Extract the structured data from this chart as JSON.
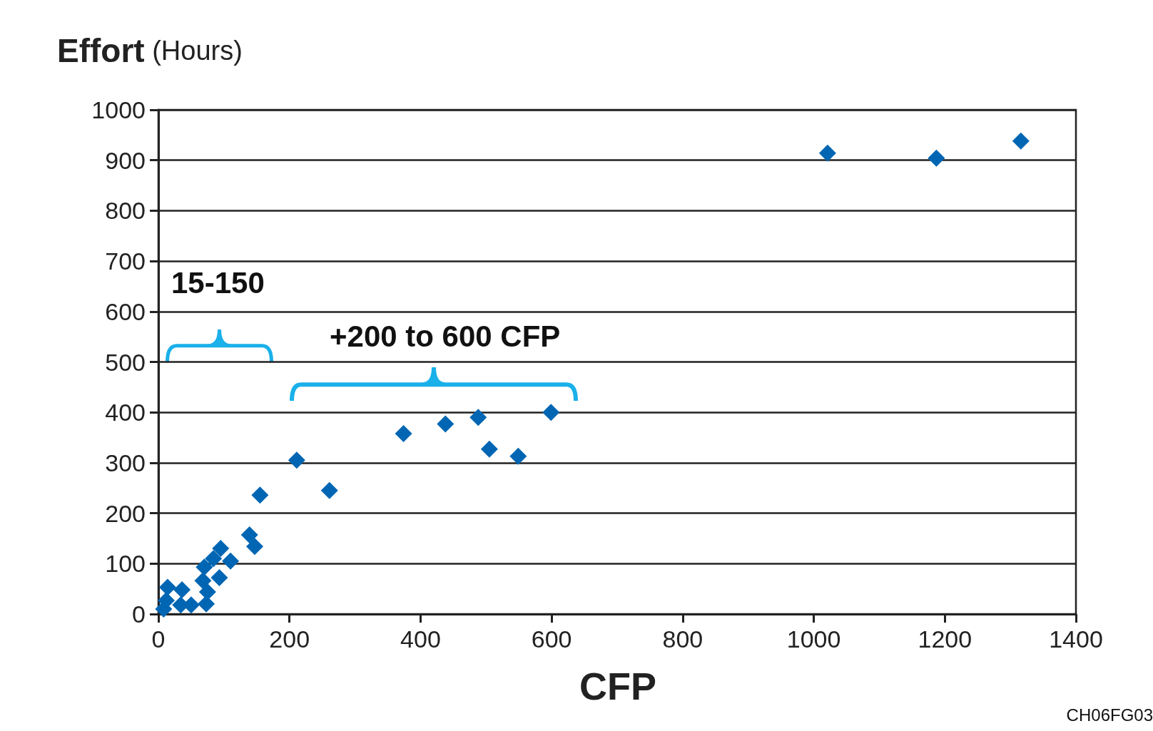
{
  "chart_data": {
    "type": "scatter",
    "xlabel": "CFP",
    "ylabel": "Effort (Hours)",
    "annotations": [
      "15-150",
      "+200 to 600 CFP",
      "CH06FG03"
    ],
    "x": [
      8,
      12,
      14,
      34,
      36,
      50,
      68,
      70,
      73,
      75,
      84,
      93,
      95,
      110,
      139,
      147,
      155,
      211,
      261,
      374,
      438,
      488,
      505,
      549,
      599,
      1021,
      1187,
      1316
    ],
    "values": [
      10,
      27,
      53,
      18,
      48,
      18,
      66,
      93,
      20,
      44,
      110,
      72,
      130,
      105,
      157,
      134,
      236,
      305,
      245,
      358,
      377,
      390,
      327,
      313,
      400,
      914,
      904,
      938
    ],
    "color": "#0066b3",
    "marker": "diamond",
    "grid": "y",
    "xlim": [
      0,
      1400
    ],
    "xticks": [
      0,
      200,
      400,
      600,
      800,
      1000,
      1200,
      1400
    ],
    "ylim": [
      0,
      1000
    ],
    "yticks": [
      0,
      100,
      200,
      300,
      400,
      500,
      600,
      700,
      800,
      900,
      1000
    ]
  }
}
